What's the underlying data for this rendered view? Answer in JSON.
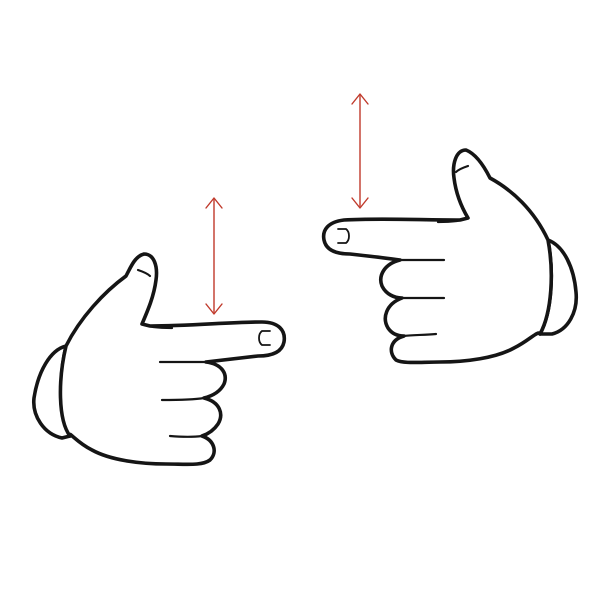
{
  "illustration": {
    "subject": "two-hands-pointing-at-each-other-icon",
    "colors": {
      "background": "#ffffff",
      "outline": "#151515",
      "arrow": "#c0392b"
    },
    "left_hand": {
      "icon": "pointing-right-hand-icon",
      "arrow_icon": "vertical-double-arrow-icon"
    },
    "right_hand": {
      "icon": "pointing-left-hand-icon",
      "arrow_icon": "vertical-double-arrow-icon"
    }
  }
}
